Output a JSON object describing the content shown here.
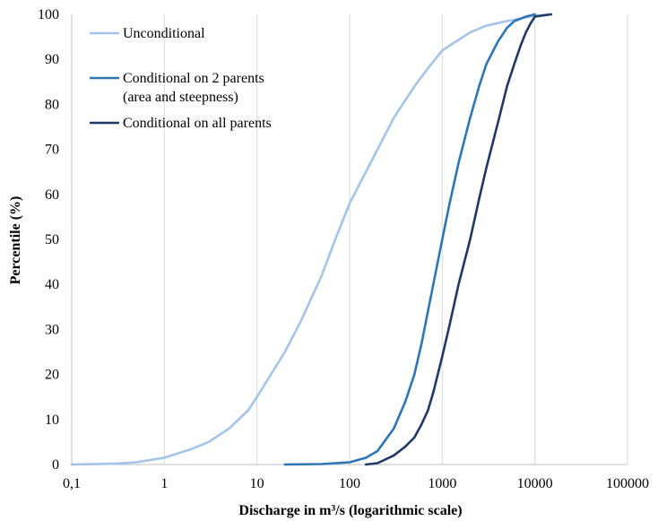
{
  "chart_data": {
    "type": "line",
    "title": "",
    "xlabel": "Discharge in m³/s (logarithmic scale)",
    "ylabel": "Percentile (%)",
    "xscale": "log",
    "xlim": [
      0.1,
      100000
    ],
    "ylim": [
      0,
      100
    ],
    "x_tick_labels": [
      "0,1",
      "1",
      "10",
      "100",
      "1000",
      "10000",
      "100000"
    ],
    "x_tick_values": [
      0.1,
      1,
      10,
      100,
      1000,
      10000,
      100000
    ],
    "y_tick_values": [
      0,
      10,
      20,
      30,
      40,
      50,
      60,
      70,
      80,
      90,
      100
    ],
    "grid": {
      "x": true,
      "y": false
    },
    "legend_placement": "top-left, inside plot",
    "series": [
      {
        "name": "Unconditional",
        "color": "#a3c4e7",
        "points": [
          [
            0.1,
            0
          ],
          [
            0.3,
            0.2
          ],
          [
            0.5,
            0.5
          ],
          [
            1,
            1.5
          ],
          [
            2,
            3.5
          ],
          [
            3,
            5
          ],
          [
            5,
            8
          ],
          [
            8,
            12
          ],
          [
            10,
            15
          ],
          [
            20,
            25
          ],
          [
            30,
            32
          ],
          [
            50,
            42
          ],
          [
            70,
            50
          ],
          [
            100,
            58
          ],
          [
            200,
            70
          ],
          [
            300,
            77
          ],
          [
            500,
            84
          ],
          [
            700,
            88
          ],
          [
            1000,
            92
          ],
          [
            2000,
            96
          ],
          [
            3000,
            97.5
          ],
          [
            5000,
            98.5
          ],
          [
            10000,
            99.7
          ],
          [
            15000,
            100
          ]
        ]
      },
      {
        "name": "Conditional on 2 parents\n(area and steepness)",
        "color": "#2e75b6",
        "points": [
          [
            20,
            0
          ],
          [
            50,
            0.1
          ],
          [
            100,
            0.5
          ],
          [
            150,
            1.5
          ],
          [
            200,
            3
          ],
          [
            300,
            8
          ],
          [
            400,
            14
          ],
          [
            500,
            20
          ],
          [
            600,
            27
          ],
          [
            700,
            34
          ],
          [
            800,
            40
          ],
          [
            1000,
            50
          ],
          [
            1200,
            58
          ],
          [
            1500,
            67
          ],
          [
            2000,
            77
          ],
          [
            2500,
            84
          ],
          [
            3000,
            89
          ],
          [
            4000,
            94
          ],
          [
            5000,
            97
          ],
          [
            6000,
            98.5
          ],
          [
            8000,
            99.5
          ],
          [
            10000,
            100
          ]
        ]
      },
      {
        "name": "Conditional on all parents",
        "color": "#203864",
        "points": [
          [
            150,
            0
          ],
          [
            200,
            0.3
          ],
          [
            300,
            2
          ],
          [
            400,
            4
          ],
          [
            500,
            6
          ],
          [
            600,
            9
          ],
          [
            700,
            12
          ],
          [
            800,
            16
          ],
          [
            1000,
            24
          ],
          [
            1200,
            31
          ],
          [
            1500,
            40
          ],
          [
            2000,
            50
          ],
          [
            2500,
            59
          ],
          [
            3000,
            66
          ],
          [
            4000,
            76
          ],
          [
            5000,
            84
          ],
          [
            6000,
            89
          ],
          [
            7000,
            93
          ],
          [
            8000,
            96
          ],
          [
            9000,
            98
          ],
          [
            10000,
            99.5
          ],
          [
            15000,
            100
          ]
        ]
      }
    ]
  }
}
